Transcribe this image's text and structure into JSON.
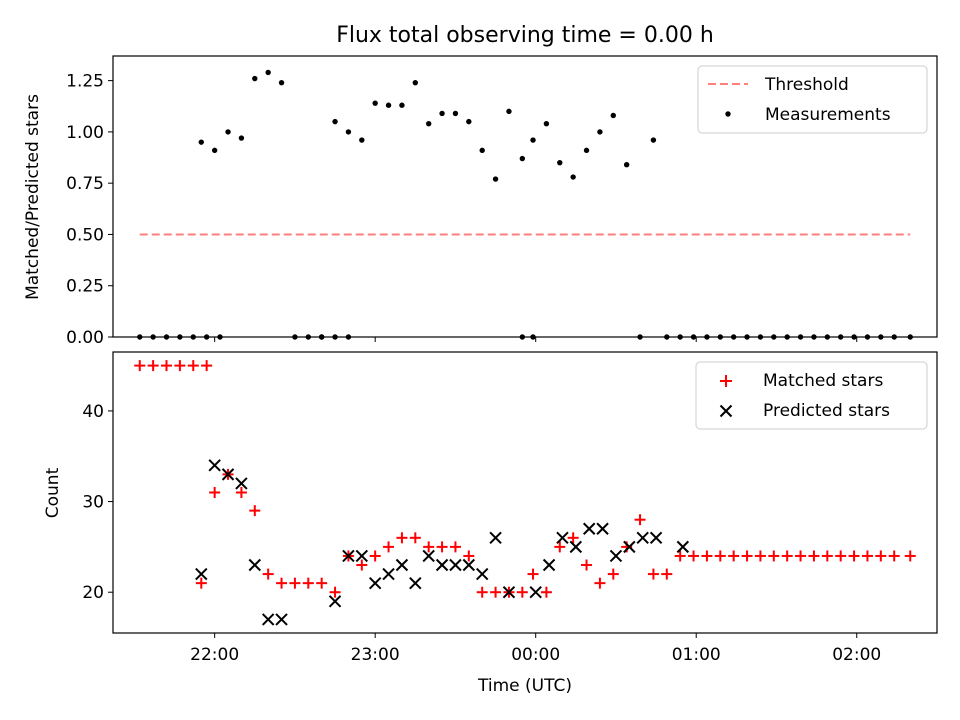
{
  "title": "Flux total observing time = 0.00 h",
  "chart_data": [
    {
      "type": "scatter",
      "panel": "top",
      "ylabel": "Matched/Predicted stars",
      "xlabel": "",
      "ylim": [
        0,
        1.37
      ],
      "yticks": [
        0.0,
        0.25,
        0.5,
        0.75,
        1.0,
        1.25
      ],
      "ytick_labels": [
        "0.00",
        "0.25",
        "0.50",
        "0.75",
        "1.00",
        "1.25"
      ],
      "xtick_labels_hidden": true,
      "legend_position": "top-right",
      "legend": [
        {
          "label": "Threshold",
          "marker": "dashed-line",
          "color": "#ff7f7f"
        },
        {
          "label": "Measurements",
          "marker": "dot",
          "color": "#000000"
        }
      ],
      "threshold": {
        "name": "Threshold",
        "y": 0.5,
        "x_range": [
          "21:32",
          "02:20"
        ],
        "color": "#ff7f7f"
      },
      "series": [
        {
          "name": "Measurements",
          "color": "#000000",
          "x": [
            "21:32",
            "21:37",
            "21:42",
            "21:47",
            "21:52",
            "21:57",
            "22:02",
            "21:55",
            "22:00",
            "22:05",
            "22:10",
            "22:15",
            "22:20",
            "22:25",
            "22:30",
            "22:35",
            "22:40",
            "22:45",
            "22:50",
            "22:55",
            "23:00",
            "23:05",
            "23:10",
            "23:15",
            "23:20",
            "23:25",
            "23:30",
            "23:35",
            "23:40",
            "23:45",
            "23:50",
            "23:55",
            "23:59",
            "00:04",
            "00:09",
            "00:14",
            "00:19",
            "00:24",
            "00:29",
            "00:34",
            "00:39",
            "00:44",
            "00:49",
            "00:54",
            "00:59",
            "01:04",
            "01:09",
            "01:14",
            "01:19",
            "01:24",
            "01:29",
            "01:34",
            "01:39",
            "01:44",
            "01:49",
            "01:54",
            "01:59",
            "02:04",
            "02:09",
            "02:14",
            "02:20",
            "22:40",
            "22:45",
            "22:50",
            "23:55",
            "23:59"
          ],
          "y": [
            0,
            0,
            0,
            0,
            0,
            0,
            0,
            0.95,
            0.91,
            1.0,
            0.97,
            1.26,
            1.29,
            1.24,
            0,
            0,
            0,
            1.05,
            1.0,
            0.96,
            1.14,
            1.13,
            1.13,
            1.24,
            1.04,
            1.09,
            1.09,
            1.05,
            0.91,
            0.77,
            1.1,
            0.87,
            0.96,
            1.04,
            0.85,
            0.78,
            0.91,
            1.0,
            1.08,
            0.84,
            0,
            0.96,
            0,
            0,
            0,
            0,
            0,
            0,
            0,
            0,
            0,
            0,
            0,
            0,
            0,
            0,
            0,
            0,
            0,
            0,
            0,
            0,
            0,
            0,
            0,
            0
          ]
        }
      ]
    },
    {
      "type": "scatter",
      "panel": "bottom",
      "ylabel": "Count",
      "xlabel": "Time (UTC)",
      "ylim": [
        15.5,
        46.5
      ],
      "yticks": [
        20,
        30,
        40
      ],
      "ytick_labels": [
        "20",
        "30",
        "40"
      ],
      "xticks": [
        "22:00",
        "23:00",
        "00:00",
        "01:00",
        "02:00"
      ],
      "legend_position": "top-right",
      "legend": [
        {
          "label": "Matched stars",
          "marker": "plus",
          "color": "#ff0000"
        },
        {
          "label": "Predicted stars",
          "marker": "x",
          "color": "#000000"
        }
      ],
      "series": [
        {
          "name": "Matched stars",
          "marker": "plus",
          "color": "#ff0000",
          "x": [
            "21:32",
            "21:37",
            "21:42",
            "21:47",
            "21:52",
            "21:57",
            "21:55",
            "22:00",
            "22:05",
            "22:10",
            "22:15",
            "22:20",
            "22:25",
            "22:30",
            "22:35",
            "22:40",
            "22:45",
            "22:50",
            "22:55",
            "23:00",
            "23:05",
            "23:10",
            "23:15",
            "23:20",
            "23:25",
            "23:30",
            "23:35",
            "23:40",
            "23:45",
            "23:50",
            "23:55",
            "23:59",
            "00:04",
            "00:09",
            "00:14",
            "00:19",
            "00:24",
            "00:29",
            "00:34",
            "00:39",
            "00:44",
            "00:49",
            "00:54",
            "00:59",
            "01:04",
            "01:09",
            "01:14",
            "01:19",
            "01:24",
            "01:29",
            "01:34",
            "01:39",
            "01:44",
            "01:49",
            "01:54",
            "01:59",
            "02:04",
            "02:09",
            "02:14",
            "02:20"
          ],
          "y": [
            45,
            45,
            45,
            45,
            45,
            45,
            21,
            31,
            33,
            31,
            29,
            22,
            21,
            21,
            21,
            21,
            20,
            24,
            23,
            24,
            25,
            26,
            26,
            25,
            25,
            25,
            24,
            20,
            20,
            20,
            20,
            22,
            20,
            25,
            26,
            23,
            21,
            22,
            25,
            28,
            22,
            22,
            24,
            24,
            24,
            24,
            24,
            24,
            24,
            24,
            24,
            24,
            24,
            24,
            24,
            24,
            24,
            24,
            24,
            24
          ]
        },
        {
          "name": "Predicted stars",
          "marker": "x",
          "color": "#000000",
          "x": [
            "21:55",
            "22:00",
            "22:05",
            "22:10",
            "22:15",
            "22:20",
            "22:25",
            "22:45",
            "22:50",
            "22:55",
            "23:00",
            "23:05",
            "23:10",
            "23:15",
            "23:20",
            "23:25",
            "23:30",
            "23:35",
            "23:40",
            "23:45",
            "23:50",
            "00:00",
            "00:05",
            "00:10",
            "00:15",
            "00:20",
            "00:25",
            "00:30",
            "00:35",
            "00:40",
            "00:45",
            "00:55"
          ],
          "y": [
            22,
            34,
            33,
            32,
            23,
            17,
            17,
            19,
            24,
            24,
            21,
            22,
            23,
            21,
            24,
            23,
            23,
            23,
            22,
            26,
            20,
            20,
            23,
            26,
            25,
            27,
            27,
            24,
            25,
            26,
            26,
            25
          ]
        }
      ]
    }
  ]
}
